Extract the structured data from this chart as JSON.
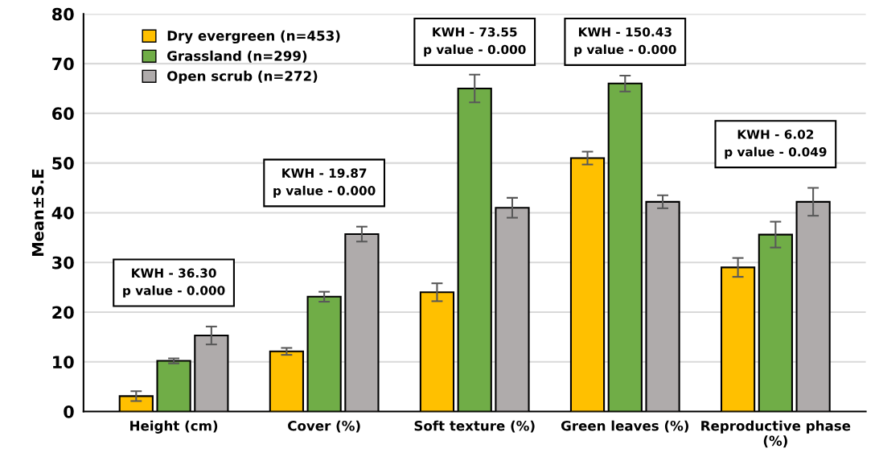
{
  "chart_data": {
    "type": "bar",
    "ylabel": "Mean±S.E",
    "categories": [
      "Height (cm)",
      "Cover (%)",
      "Soft texture (%)",
      "Green leaves (%)",
      "Reproductive phase\n(%)"
    ],
    "series": [
      {
        "name": "Dry evergreen (n=453)",
        "color": "#ffc000",
        "values": [
          3.1,
          12.1,
          24.0,
          51.0,
          29.0
        ],
        "errors": [
          1.0,
          0.7,
          1.8,
          1.3,
          1.9
        ]
      },
      {
        "name": "Grassland (n=299)",
        "color": "#70ad47",
        "values": [
          10.2,
          23.1,
          65.0,
          66.0,
          35.6
        ],
        "errors": [
          0.5,
          1.0,
          2.8,
          1.6,
          2.6
        ]
      },
      {
        "name": "Open scrub (n=272)",
        "color": "#afabab",
        "values": [
          15.3,
          35.7,
          41.0,
          42.2,
          42.2
        ],
        "errors": [
          1.8,
          1.5,
          2.0,
          1.3,
          2.8
        ]
      }
    ],
    "annotations": [
      "KWH - 36.30\np value - 0.000",
      "KWH - 19.87\np value - 0.000",
      "KWH - 73.55\np value - 0.000",
      "KWH - 150.43\np value - 0.000",
      "KWH - 6.02\np value - 0.049"
    ],
    "ylim": [
      0,
      80
    ],
    "yticks": [
      0,
      10,
      20,
      30,
      40,
      50,
      60,
      70,
      80
    ],
    "grid": "y",
    "legend": "top left"
  }
}
